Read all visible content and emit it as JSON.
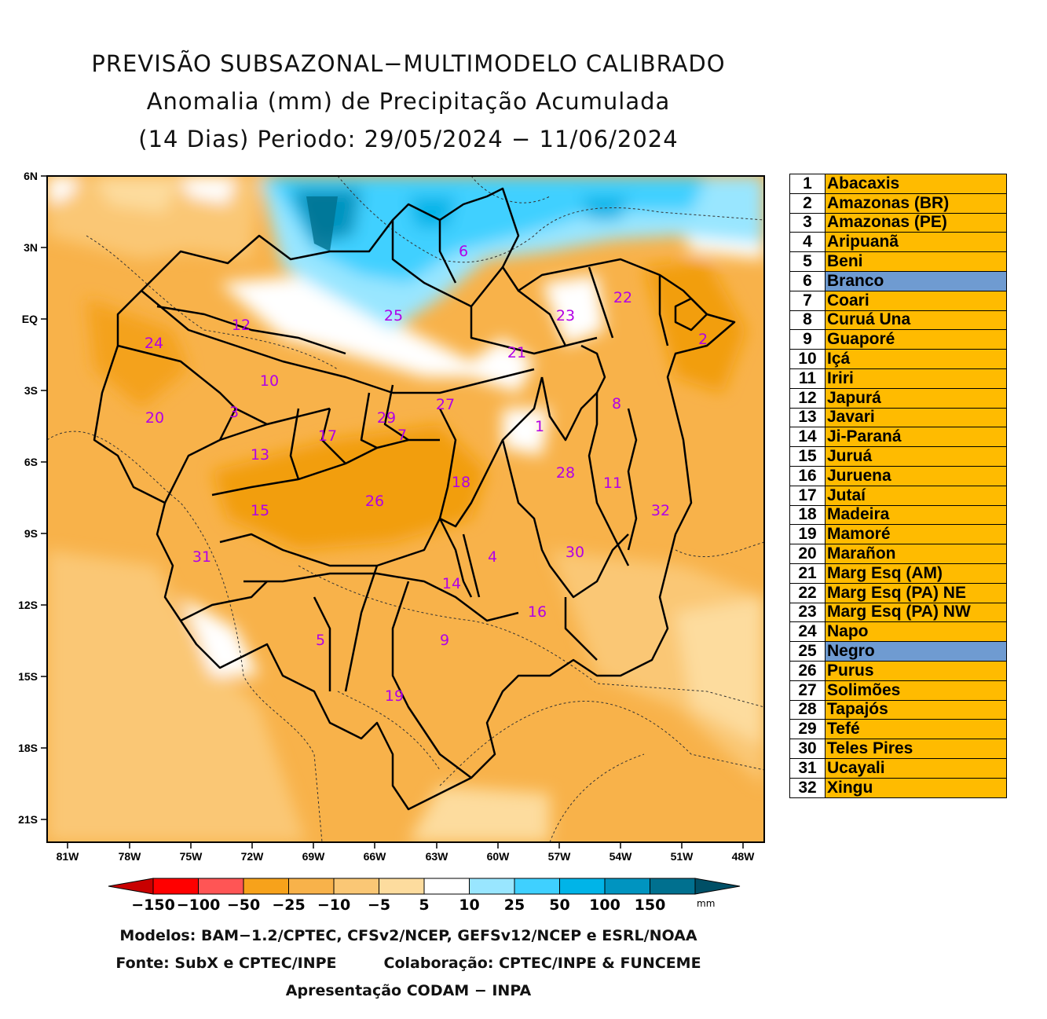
{
  "title": {
    "line1": "PREVISÃO SUBSAZONAL−MULTIMODELO CALIBRADO",
    "line2": "Anomalia (mm) de Precipitação Acumulada",
    "line3": "(14 Dias) Periodo: 29/05/2024 − 11/06/2024"
  },
  "map": {
    "lat_labels": [
      "6N",
      "3N",
      "EQ",
      "3S",
      "6S",
      "9S",
      "12S",
      "15S",
      "18S",
      "21S"
    ],
    "lon_labels": [
      "81W",
      "78W",
      "75W",
      "72W",
      "69W",
      "66W",
      "63W",
      "60W",
      "57W",
      "54W",
      "51W",
      "48W"
    ],
    "basin_labels": [
      "1",
      "2",
      "3",
      "4",
      "5",
      "6",
      "7",
      "8",
      "9",
      "10",
      "11",
      "12",
      "13",
      "14",
      "15",
      "16",
      "17",
      "18",
      "19",
      "20",
      "21",
      "22",
      "23",
      "24",
      "25",
      "26",
      "27",
      "28",
      "29",
      "30",
      "31",
      "32"
    ]
  },
  "colorbar": {
    "tick_labels": [
      "−150",
      "−100",
      "−50",
      "−25",
      "−10",
      "−5",
      "5",
      "10",
      "25",
      "50",
      "100",
      "150"
    ],
    "unit": "mm",
    "colors": [
      "#c80000",
      "#ff0000",
      "#ff5555",
      "#f7a21b",
      "#f8b24a",
      "#fac775",
      "#fddc9e",
      "#ffffff",
      "#99e6ff",
      "#3fd0ff",
      "#00b4e8",
      "#0094c0",
      "#00708f",
      "#004f66"
    ]
  },
  "legend": [
    {
      "num": "1",
      "name": "Abacaxis",
      "highlight": false
    },
    {
      "num": "2",
      "name": "Amazonas (BR)",
      "highlight": false
    },
    {
      "num": "3",
      "name": "Amazonas (PE)",
      "highlight": false
    },
    {
      "num": "4",
      "name": "Aripuanã",
      "highlight": false
    },
    {
      "num": "5",
      "name": "Beni",
      "highlight": false
    },
    {
      "num": "6",
      "name": "Branco",
      "highlight": true
    },
    {
      "num": "7",
      "name": "Coari",
      "highlight": false
    },
    {
      "num": "8",
      "name": "Curuá Una",
      "highlight": false
    },
    {
      "num": "9",
      "name": "Guaporé",
      "highlight": false
    },
    {
      "num": "10",
      "name": "Içá",
      "highlight": false
    },
    {
      "num": "11",
      "name": "Iriri",
      "highlight": false
    },
    {
      "num": "12",
      "name": "Japurá",
      "highlight": false
    },
    {
      "num": "13",
      "name": "Javari",
      "highlight": false
    },
    {
      "num": "14",
      "name": "Ji-Paraná",
      "highlight": false
    },
    {
      "num": "15",
      "name": "Juruá",
      "highlight": false
    },
    {
      "num": "16",
      "name": "Juruena",
      "highlight": false
    },
    {
      "num": "17",
      "name": "Jutaí",
      "highlight": false
    },
    {
      "num": "18",
      "name": "Madeira",
      "highlight": false
    },
    {
      "num": "19",
      "name": "Mamoré",
      "highlight": false
    },
    {
      "num": "20",
      "name": "Marañon",
      "highlight": false
    },
    {
      "num": "21",
      "name": "Marg Esq (AM)",
      "highlight": false
    },
    {
      "num": "22",
      "name": "Marg Esq (PA) NE",
      "highlight": false
    },
    {
      "num": "23",
      "name": "Marg Esq (PA) NW",
      "highlight": false
    },
    {
      "num": "24",
      "name": "Napo",
      "highlight": false
    },
    {
      "num": "25",
      "name": "Negro",
      "highlight": true
    },
    {
      "num": "26",
      "name": "Purus",
      "highlight": false
    },
    {
      "num": "27",
      "name": "Solimões",
      "highlight": false
    },
    {
      "num": "28",
      "name": "Tapajós",
      "highlight": false
    },
    {
      "num": "29",
      "name": "Tefé",
      "highlight": false
    },
    {
      "num": "30",
      "name": "Teles Pires",
      "highlight": false
    },
    {
      "num": "31",
      "name": "Ucayali",
      "highlight": false
    },
    {
      "num": "32",
      "name": "Xingu",
      "highlight": false
    }
  ],
  "legend_colors": {
    "default": "#ffbb00",
    "highlight": "#6f9bd1"
  },
  "footer": {
    "models": "Modelos: BAM−1.2/CPTEC, CFSv2/NCEP, GEFSv12/NCEP e ESRL/NOAA",
    "source": "Fonte: SubX e CPTEC/INPE",
    "collab": "Colaboração: CPTEC/INPE & FUNCEME",
    "presentation": "Apresentação CODAM − INPA"
  }
}
